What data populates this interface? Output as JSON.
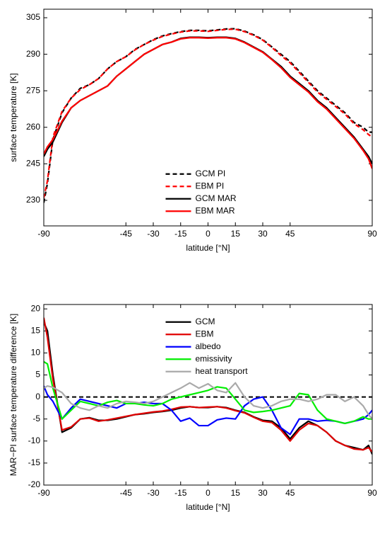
{
  "chart_data": [
    {
      "type": "line",
      "xlabel": "latitude [°N]",
      "ylabel": "surface temperature [K]",
      "xlim": [
        -90,
        90
      ],
      "xticks": [
        -90,
        -45,
        -30,
        -15,
        0,
        15,
        30,
        45,
        90
      ],
      "ylim": [
        219.5,
        308.5
      ],
      "yticks": [
        230,
        245,
        260,
        275,
        290,
        305
      ],
      "legend": "lower center",
      "x": [
        -90,
        -88,
        -85,
        -80,
        -75,
        -70,
        -65,
        -60,
        -55,
        -50,
        -45,
        -40,
        -35,
        -30,
        -25,
        -20,
        -15,
        -10,
        -5,
        0,
        5,
        10,
        15,
        20,
        25,
        30,
        35,
        40,
        45,
        50,
        55,
        60,
        65,
        70,
        75,
        80,
        85,
        88,
        90
      ],
      "series": [
        {
          "name": "GCM PI",
          "color": "#000000",
          "dashed": true,
          "values": [
            229,
            237,
            255,
            266,
            272,
            276,
            277.5,
            280,
            284,
            287,
            289,
            292,
            294,
            296,
            297.5,
            298.5,
            299.3,
            299.8,
            299.8,
            299.6,
            300,
            300.4,
            300.5,
            299.5,
            298,
            296,
            293,
            290,
            287,
            283,
            279,
            275,
            272,
            269,
            266,
            262,
            260,
            258,
            258
          ]
        },
        {
          "name": "EBM PI",
          "color": "#ff0000",
          "dashed": true,
          "values": [
            231,
            238,
            256,
            266.5,
            272,
            275.5,
            277.5,
            280,
            284,
            287,
            289,
            291.8,
            294,
            295.8,
            297.3,
            298.3,
            299.1,
            299.6,
            299.6,
            299.4,
            299.8,
            300.2,
            300.3,
            299.3,
            297.8,
            295.8,
            292.8,
            289.5,
            286.5,
            282.5,
            278.5,
            274.5,
            271.5,
            268.5,
            265.5,
            261.5,
            259,
            257,
            256
          ]
        },
        {
          "name": "GCM MAR",
          "color": "#000000",
          "dashed": false,
          "values": [
            248,
            251,
            254,
            262,
            268,
            271,
            273,
            275,
            277,
            281,
            284,
            287,
            290,
            292,
            294,
            295,
            296.5,
            297,
            297,
            296.8,
            297,
            297,
            296.5,
            295,
            293,
            291,
            288,
            285,
            281,
            278,
            275,
            271,
            268,
            264,
            260,
            256,
            251,
            248,
            245
          ]
        },
        {
          "name": "EBM MAR",
          "color": "#ff0000",
          "dashed": false,
          "values": [
            249,
            252,
            255,
            262.5,
            268,
            271,
            273,
            275,
            277,
            281,
            284,
            287,
            290,
            292,
            294,
            295,
            296.3,
            296.8,
            296.8,
            296.6,
            296.8,
            296.8,
            296.3,
            294.8,
            292.8,
            290.8,
            287.8,
            284.5,
            280.5,
            277.5,
            274.5,
            270.5,
            267.5,
            263.5,
            259.5,
            255.5,
            250.5,
            247,
            243
          ]
        }
      ]
    },
    {
      "type": "line",
      "xlabel": "latitude [°N]",
      "ylabel": "MAR−PI surface temperature difference [K]",
      "xlim": [
        -90,
        90
      ],
      "xticks": [
        -90,
        -45,
        -30,
        -15,
        0,
        15,
        30,
        45,
        90
      ],
      "ylim": [
        -20,
        21
      ],
      "yticks": [
        -20,
        -15,
        -10,
        -5,
        0,
        5,
        10,
        15,
        20
      ],
      "legend": "upper center",
      "reference_line": {
        "value": 0,
        "color": "#000000",
        "dashed": true
      },
      "x": [
        -90,
        -88,
        -85,
        -80,
        -75,
        -70,
        -65,
        -60,
        -55,
        -50,
        -45,
        -40,
        -35,
        -30,
        -25,
        -20,
        -15,
        -10,
        -5,
        0,
        5,
        10,
        15,
        20,
        25,
        30,
        35,
        40,
        45,
        50,
        55,
        60,
        65,
        70,
        75,
        80,
        85,
        88,
        90
      ],
      "series": [
        {
          "name": "GCM",
          "color": "#000000",
          "dashed": false,
          "values": [
            17,
            15,
            5,
            -8,
            -7,
            -5,
            -4.7,
            -5.3,
            -5.3,
            -5,
            -4.5,
            -4,
            -3.8,
            -3.5,
            -3.3,
            -3,
            -2.5,
            -2.2,
            -2.4,
            -2.4,
            -2.2,
            -2.4,
            -3,
            -3.5,
            -4.5,
            -5.3,
            -5.5,
            -7,
            -9.5,
            -7,
            -5.5,
            -6.5,
            -8,
            -10,
            -11,
            -11.5,
            -12,
            -11,
            -13
          ]
        },
        {
          "name": "EBM",
          "color": "#e00000",
          "dashed": false,
          "values": [
            18,
            13.5,
            4,
            -7.5,
            -6.8,
            -5,
            -4.8,
            -5.5,
            -5.2,
            -4.8,
            -4.4,
            -4,
            -3.7,
            -3.4,
            -3.2,
            -2.8,
            -2.3,
            -2.2,
            -2.4,
            -2.3,
            -2.2,
            -2.5,
            -3.1,
            -3.6,
            -4.6,
            -5.5,
            -5.8,
            -7.5,
            -10,
            -7.5,
            -6,
            -6.5,
            -8,
            -10,
            -11,
            -11.8,
            -12,
            -11.5,
            -12.5
          ]
        },
        {
          "name": "albedo",
          "color": "#0000ff",
          "dashed": false,
          "values": [
            2.5,
            0.5,
            -1,
            -5,
            -2.5,
            -0.5,
            -1,
            -1.5,
            -2,
            -2.5,
            -1.5,
            -1.5,
            -1.2,
            -1.5,
            -1.5,
            -3,
            -5.5,
            -4.8,
            -6.5,
            -6.5,
            -5.2,
            -4.8,
            -5,
            -2,
            -0.5,
            0,
            -3,
            -7,
            -8.5,
            -5,
            -5,
            -5.5,
            -5.3,
            -5.5,
            -6,
            -5.5,
            -5,
            -4,
            -3
          ]
        },
        {
          "name": "emissivity",
          "color": "#00ee00",
          "dashed": false,
          "values": [
            8,
            7.5,
            2,
            -5,
            -3,
            -1,
            -1.5,
            -2,
            -1.2,
            -0.8,
            -1.5,
            -1.5,
            -1.8,
            -2,
            -1.5,
            -0.5,
            0,
            0.5,
            1,
            1.5,
            2.3,
            2,
            -0.5,
            -3,
            -3.5,
            -3.3,
            -3,
            -2.5,
            -2,
            0.8,
            0.5,
            -3,
            -5,
            -5.5,
            -6,
            -5.5,
            -4.5,
            -5,
            -5
          ]
        },
        {
          "name": "heat transport",
          "color": "#aaaaaa",
          "dashed": false,
          "values": [
            2,
            2.5,
            2.2,
            1,
            -1.5,
            -2.5,
            -3,
            -2,
            -2.5,
            -1.5,
            -1,
            -1.2,
            -1.5,
            -1,
            0,
            1,
            2,
            3.2,
            2,
            3,
            1.5,
            1,
            3.2,
            0,
            -2,
            -2.5,
            -2,
            -1,
            -0.5,
            -0.5,
            -1,
            -0.5,
            0.5,
            0.5,
            -1,
            0,
            -2,
            -4,
            -5
          ]
        }
      ]
    }
  ]
}
